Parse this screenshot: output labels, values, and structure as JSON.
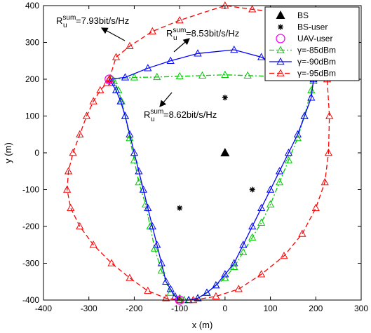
{
  "chart_data": {
    "type": "scatter",
    "xlabel": "x (m)",
    "ylabel": "y (m)",
    "xlim": [
      -400,
      300
    ],
    "ylim": [
      -400,
      400
    ],
    "xticks": [
      -400,
      -300,
      -200,
      -100,
      0,
      100,
      200,
      300
    ],
    "yticks": [
      -400,
      -300,
      -200,
      -100,
      0,
      100,
      200,
      300,
      400
    ],
    "grid": false,
    "legend_position": "top-right",
    "points": {
      "bs": [
        [
          0,
          0
        ]
      ],
      "bs_users": [
        [
          0,
          150
        ],
        [
          -100,
          -150
        ],
        [
          60,
          -100
        ]
      ],
      "uav_users": [
        [
          -255,
          200
        ],
        [
          -100,
          -400
        ]
      ]
    },
    "series": [
      {
        "name": "γ=-85dBm",
        "color": "#00cc00",
        "style": "dash-dot",
        "marker": "triangle",
        "x": [
          -250,
          -200,
          -150,
          -100,
          -50,
          0,
          50,
          100,
          150,
          195,
          190,
          175,
          160,
          140,
          120,
          100,
          80,
          60,
          40,
          20,
          0,
          -20,
          -40,
          -60,
          -80,
          -90,
          -100,
          -120,
          -140,
          -155,
          -165,
          -175,
          -190,
          -200,
          -210,
          -220,
          -228,
          -235,
          -245,
          -250
        ],
        "y": [
          200,
          205,
          206,
          208,
          210,
          212,
          210,
          208,
          206,
          195,
          170,
          100,
          40,
          -20,
          -80,
          -140,
          -190,
          -230,
          -270,
          -310,
          -340,
          -360,
          -380,
          -395,
          -400,
          -400,
          -395,
          -380,
          -320,
          -260,
          -200,
          -140,
          -80,
          -20,
          40,
          100,
          140,
          170,
          195,
          200
        ]
      },
      {
        "name": "γ=-90dBm",
        "color": "#0000ff",
        "style": "solid",
        "marker": "triangle",
        "x": [
          -255,
          -220,
          -170,
          -120,
          -60,
          20,
          80,
          140,
          195,
          190,
          175,
          160,
          140,
          120,
          100,
          80,
          60,
          40,
          20,
          0,
          -20,
          -40,
          -60,
          -80,
          -100,
          -110,
          -120,
          -130,
          -140,
          -150,
          -160,
          -170,
          -180,
          -190,
          -200,
          -210,
          -220,
          -230,
          -240,
          -250,
          -255
        ],
        "y": [
          200,
          205,
          230,
          250,
          270,
          280,
          260,
          220,
          200,
          150,
          100,
          50,
          0,
          -50,
          -100,
          -150,
          -200,
          -250,
          -300,
          -330,
          -360,
          -380,
          -395,
          -400,
          -400,
          -390,
          -370,
          -350,
          -300,
          -250,
          -200,
          -150,
          -100,
          -50,
          0,
          50,
          100,
          140,
          170,
          190,
          200
        ]
      },
      {
        "name": "γ=-95dBm",
        "color": "#ff0000",
        "style": "dashed",
        "marker": "triangle",
        "x": [
          -255,
          -240,
          -210,
          -160,
          -100,
          0,
          60,
          130,
          190,
          215,
          225,
          230,
          228,
          220,
          200,
          170,
          130,
          80,
          30,
          -20,
          -70,
          -100,
          -130,
          -170,
          -210,
          -250,
          -290,
          -320,
          -340,
          -348,
          -345,
          -335,
          -320,
          -305,
          -290,
          -275,
          -260,
          -255
        ],
        "y": [
          200,
          260,
          290,
          330,
          360,
          400,
          390,
          380,
          350,
          300,
          200,
          100,
          0,
          -80,
          -150,
          -220,
          -280,
          -330,
          -370,
          -390,
          -400,
          -400,
          -395,
          -375,
          -340,
          -300,
          -250,
          -200,
          -150,
          -100,
          -50,
          0,
          50,
          100,
          140,
          170,
          190,
          200
        ]
      }
    ],
    "annotations": [
      {
        "base": "R",
        "sub": "u",
        "sup": "sum",
        "text": "=7.93bit/s/Hz"
      },
      {
        "base": "R",
        "sub": "u",
        "sup": "sum",
        "text": "=8.53bit/s/Hz"
      },
      {
        "base": "R",
        "sub": "u",
        "sup": "sum",
        "text": "=8.62bit/s/Hz"
      }
    ],
    "legend": [
      {
        "label": "BS",
        "marker": "triangle-filled",
        "color": "#000000"
      },
      {
        "label": "BS-user",
        "marker": "asterisk",
        "color": "#000000"
      },
      {
        "label": "UAV-user",
        "marker": "circle",
        "color": "#ff00ff"
      },
      {
        "label": "γ=-85dBm",
        "marker": "triangle",
        "color": "#00cc00",
        "style": "dash-dot"
      },
      {
        "label": "γ=-90dBm",
        "marker": "triangle",
        "color": "#0000ff",
        "style": "solid"
      },
      {
        "label": "γ=-95dBm",
        "marker": "triangle",
        "color": "#ff0000",
        "style": "dashed"
      }
    ]
  }
}
